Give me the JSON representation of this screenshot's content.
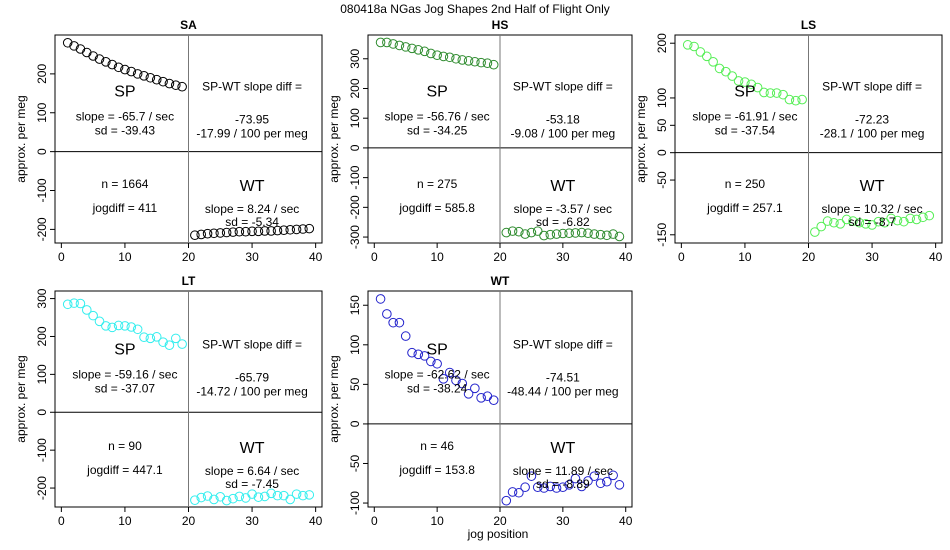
{
  "figure": {
    "title": "080418a   NGas Jog Shapes 2nd Half of Flight Only",
    "xlabel": "jog position"
  },
  "chart_data": [
    {
      "type": "scatter",
      "title": "SA",
      "ylabel": "approx. per meg",
      "color": "#000000",
      "xlim": [
        -1,
        41
      ],
      "ylim": [
        -235,
        300
      ],
      "xticks": [
        "0",
        "10",
        "20",
        "30",
        "40"
      ],
      "yticks": [
        "-200",
        "-100",
        "0",
        "100",
        "200"
      ],
      "ytick_values": [
        -200,
        -100,
        0,
        100,
        200
      ],
      "x": [
        1,
        2,
        3,
        4,
        5,
        6,
        7,
        8,
        9,
        10,
        11,
        12,
        13,
        14,
        15,
        16,
        17,
        18,
        19,
        21,
        22,
        23,
        24,
        25,
        26,
        27,
        28,
        29,
        30,
        31,
        32,
        33,
        34,
        35,
        36,
        37,
        38,
        39
      ],
      "y": [
        280,
        272,
        264,
        255,
        246,
        238,
        231,
        224,
        217,
        211,
        206,
        200,
        195,
        190,
        185,
        180,
        175,
        171,
        167,
        -215,
        -213,
        -211,
        -210,
        -209,
        -208,
        -207,
        -206,
        -206,
        -205,
        -205,
        -204,
        -204,
        -203,
        -202,
        -201,
        -200,
        -199,
        -198
      ],
      "labels": {
        "sp": "SP",
        "sp_slope": "slope = -65.7 / sec",
        "sp_sd": "sd = -39.43",
        "diff_title": "SP-WT slope diff =",
        "diff_value": "-73.95",
        "diff_per": "-17.99 / 100 per meg",
        "n": "n = 1664",
        "jogdiff": "jogdiff = 411",
        "wt": "WT",
        "wt_slope": "slope = 8.24 / sec",
        "wt_sd": "sd = -5.34"
      }
    },
    {
      "type": "scatter",
      "title": "HS",
      "ylabel": "approx. per meg",
      "color": "#2e8b2e",
      "xlim": [
        -1,
        41
      ],
      "ylim": [
        -320,
        380
      ],
      "xticks": [
        "0",
        "10",
        "20",
        "30",
        "40"
      ],
      "yticks": [
        "-300",
        "-200",
        "-100",
        "0",
        "100",
        "200",
        "300"
      ],
      "ytick_values": [
        -300,
        -200,
        -100,
        0,
        100,
        200,
        300
      ],
      "x": [
        1,
        2,
        3,
        4,
        5,
        6,
        7,
        8,
        9,
        10,
        11,
        12,
        13,
        14,
        15,
        16,
        17,
        18,
        19,
        21,
        22,
        23,
        24,
        25,
        26,
        27,
        28,
        29,
        30,
        31,
        32,
        33,
        34,
        35,
        36,
        37,
        38,
        39
      ],
      "y": [
        355,
        355,
        350,
        345,
        340,
        335,
        330,
        325,
        318,
        312,
        308,
        305,
        300,
        296,
        293,
        290,
        287,
        285,
        280,
        -285,
        -280,
        -282,
        -290,
        -285,
        -280,
        -295,
        -292,
        -290,
        -288,
        -287,
        -286,
        -285,
        -287,
        -290,
        -292,
        -294,
        -290,
        -298
      ],
      "labels": {
        "sp": "SP",
        "sp_slope": "slope = -56.76 / sec",
        "sp_sd": "sd = -34.25",
        "diff_title": "SP-WT slope diff =",
        "diff_value": "-53.18",
        "diff_per": "-9.08 / 100 per meg",
        "n": "n = 275",
        "jogdiff": "jogdiff = 585.8",
        "wt": "WT",
        "wt_slope": "slope = -3.57 / sec",
        "wt_sd": "sd = -6.82"
      }
    },
    {
      "type": "scatter",
      "title": "LS",
      "ylabel": "approx. per meg",
      "color": "#55ee55",
      "xlim": [
        -1,
        41
      ],
      "ylim": [
        -165,
        215
      ],
      "xticks": [
        "0",
        "10",
        "20",
        "30",
        "40"
      ],
      "yticks": [
        "-150",
        "-50",
        "0",
        "50",
        "100",
        "200"
      ],
      "ytick_values": [
        -150,
        -50,
        0,
        50,
        100,
        200
      ],
      "x": [
        1,
        2,
        3,
        4,
        5,
        6,
        7,
        8,
        9,
        10,
        11,
        12,
        13,
        14,
        15,
        16,
        17,
        18,
        19,
        21,
        22,
        23,
        24,
        25,
        26,
        27,
        28,
        29,
        30,
        31,
        32,
        33,
        34,
        35,
        36,
        37,
        38,
        39
      ],
      "y": [
        197,
        194,
        184,
        176,
        166,
        154,
        148,
        140,
        131,
        129,
        125,
        119,
        110,
        109,
        109,
        106,
        97,
        95,
        97,
        -145,
        -135,
        -125,
        -128,
        -130,
        -122,
        -125,
        -128,
        -130,
        -132,
        -126,
        -128,
        -120,
        -124,
        -126,
        -120,
        -122,
        -118,
        -115
      ],
      "labels": {
        "sp": "SP",
        "sp_slope": "slope = -61.91 / sec",
        "sp_sd": "sd = -37.54",
        "diff_title": "SP-WT slope diff =",
        "diff_value": "-72.23",
        "diff_per": "-28.1 / 100 per meg",
        "n": "n = 250",
        "jogdiff": "jogdiff = 257.1",
        "wt": "WT",
        "wt_slope": "slope = 10.32 / sec",
        "wt_sd": "sd = -8.7"
      }
    },
    {
      "type": "scatter",
      "title": "LT",
      "ylabel": "approx. per meg",
      "color": "#33eeee",
      "xlim": [
        -1,
        41
      ],
      "ylim": [
        -250,
        320
      ],
      "xticks": [
        "0",
        "10",
        "20",
        "30",
        "40"
      ],
      "yticks": [
        "-200",
        "-100",
        "0",
        "100",
        "200",
        "300"
      ],
      "ytick_values": [
        -200,
        -100,
        0,
        100,
        200,
        300
      ],
      "x": [
        1,
        2,
        3,
        4,
        5,
        6,
        7,
        8,
        9,
        10,
        11,
        12,
        13,
        14,
        15,
        16,
        17,
        18,
        19,
        21,
        22,
        23,
        24,
        25,
        26,
        27,
        28,
        29,
        30,
        31,
        32,
        33,
        34,
        35,
        36,
        37,
        38,
        39
      ],
      "y": [
        285,
        288,
        287,
        270,
        255,
        240,
        228,
        224,
        229,
        228,
        225,
        219,
        198,
        195,
        199,
        185,
        177,
        195,
        180,
        -232,
        -225,
        -221,
        -230,
        -223,
        -233,
        -228,
        -222,
        -226,
        -216,
        -224,
        -222,
        -214,
        -220,
        -220,
        -230,
        -216,
        -220,
        -218
      ],
      "labels": {
        "sp": "SP",
        "sp_slope": "slope = -59.16 / sec",
        "sp_sd": "sd = -37.07",
        "diff_title": "SP-WT slope diff =",
        "diff_value": "-65.79",
        "diff_per": "-14.72 / 100 per meg",
        "n": "n = 90",
        "jogdiff": "jogdiff = 447.1",
        "wt": "WT",
        "wt_slope": "slope = 6.64 / sec",
        "wt_sd": "sd = -7.45"
      }
    },
    {
      "type": "scatter",
      "title": "WT",
      "ylabel": "approx. per meg",
      "color": "#2323cc",
      "xlim": [
        -1,
        41
      ],
      "ylim": [
        -105,
        168
      ],
      "xticks": [
        "0",
        "10",
        "20",
        "30",
        "40"
      ],
      "yticks": [
        "-100",
        "-50",
        "0",
        "50",
        "100",
        "150"
      ],
      "ytick_values": [
        -100,
        -50,
        0,
        50,
        100,
        150
      ],
      "x": [
        1,
        2,
        3,
        4,
        5,
        6,
        7,
        8,
        9,
        10,
        11,
        12,
        13,
        14,
        15,
        16,
        17,
        18,
        19,
        21,
        22,
        23,
        24,
        25,
        26,
        27,
        28,
        29,
        30,
        31,
        32,
        33,
        34,
        35,
        36,
        37,
        38,
        39
      ],
      "y": [
        158,
        139,
        128,
        128,
        111,
        90,
        88,
        86,
        79,
        76,
        57,
        65,
        55,
        51,
        38,
        45,
        33,
        35,
        30,
        -97,
        -86,
        -87,
        -80,
        -66,
        -80,
        -81,
        -79,
        -81,
        -80,
        -77,
        -69,
        -79,
        -72,
        -66,
        -75,
        -73,
        -65,
        -77
      ],
      "labels": {
        "sp": "SP",
        "sp_slope": "slope = -62.62 / sec",
        "sp_sd": "sd = -38.24",
        "diff_title": "SP-WT slope diff =",
        "diff_value": "-74.51",
        "diff_per": "-48.44 / 100 per meg",
        "n": "n = 46",
        "jogdiff": "jogdiff = 153.8",
        "wt": "WT",
        "wt_slope": "slope = 11.89 / sec",
        "wt_sd": "sd = -8.89"
      }
    }
  ]
}
